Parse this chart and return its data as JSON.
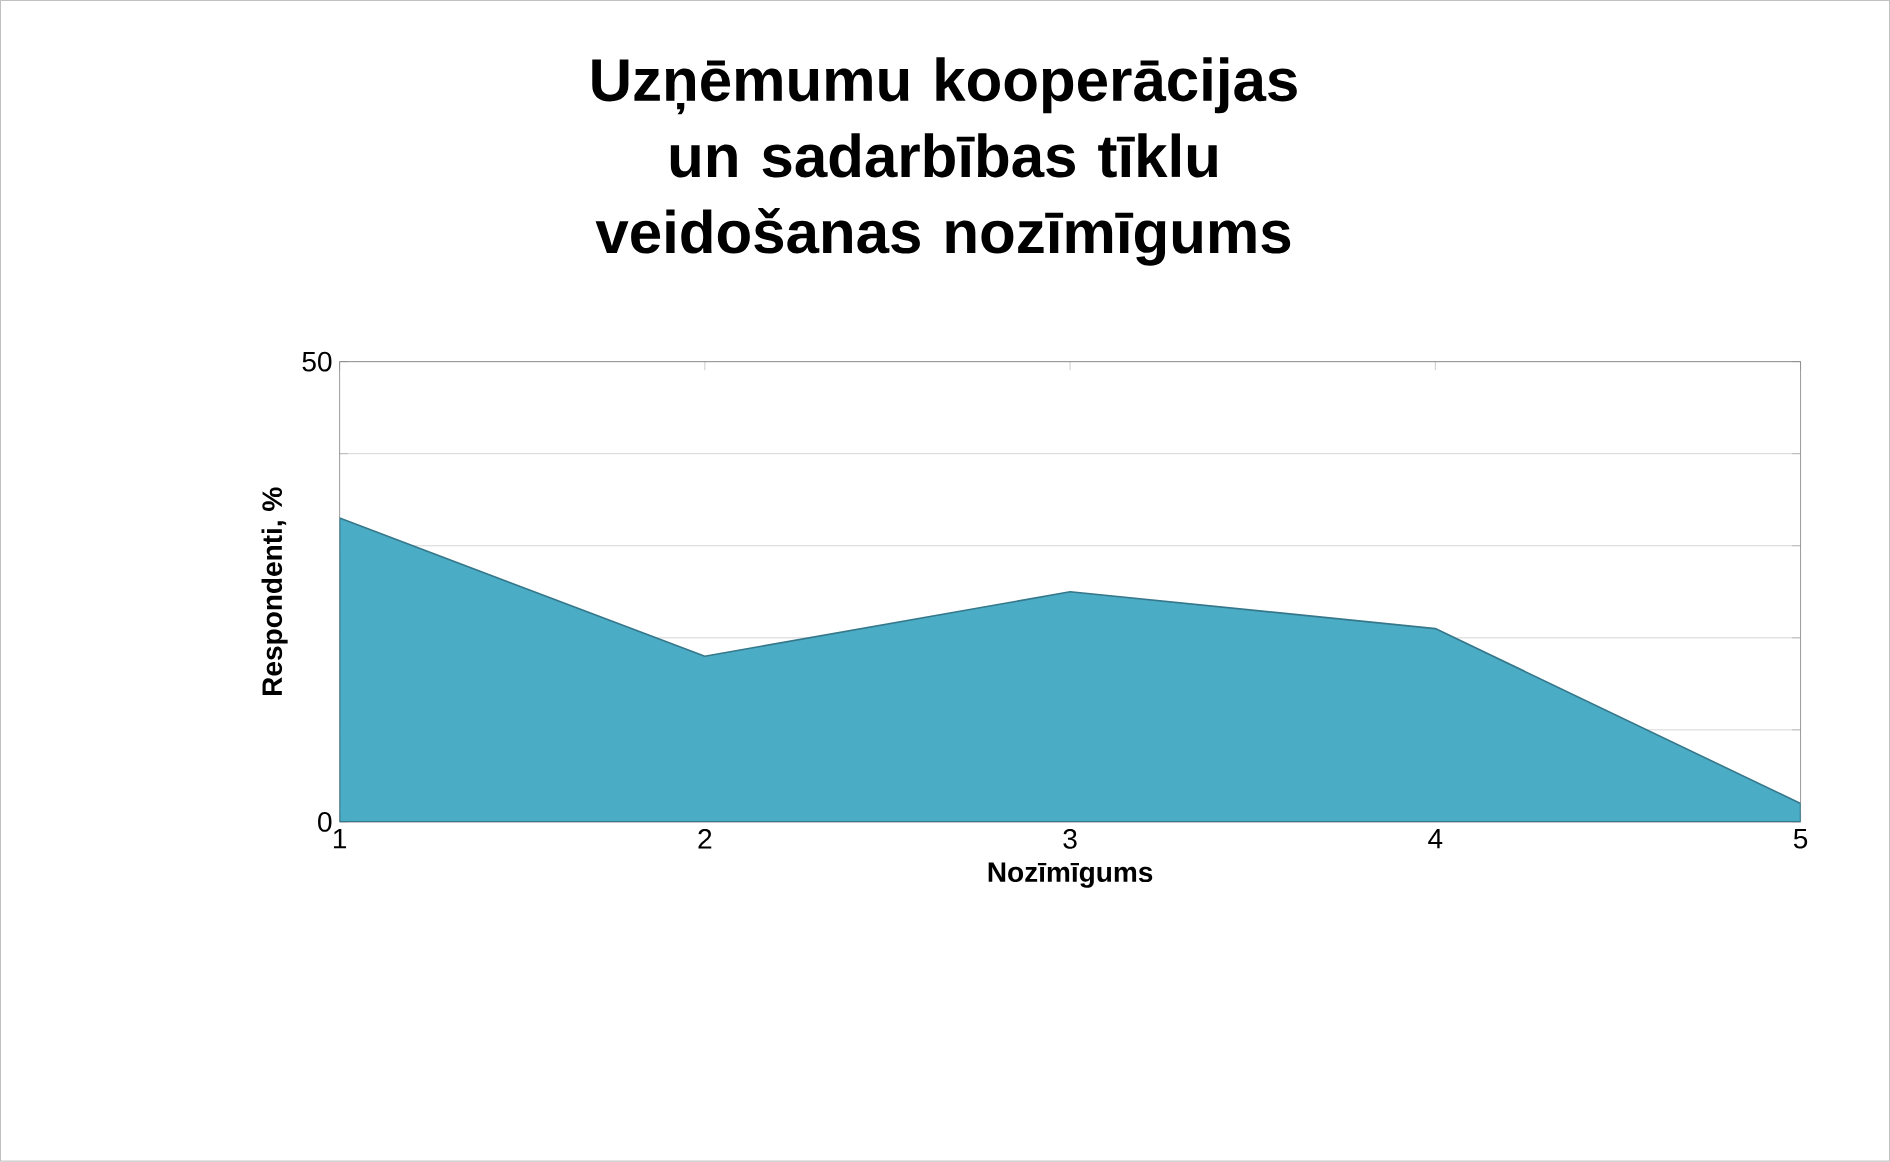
{
  "chart_data": {
    "type": "area",
    "title": "Uzņēmumu kooperācijas un sadarbības tīklu veidošanas nozīmīgums",
    "xlabel": "Nozīmīgums",
    "ylabel": "Respondenti, %",
    "categories": [
      "1",
      "2",
      "3",
      "4",
      "5"
    ],
    "values": [
      33,
      18,
      25,
      21,
      2
    ],
    "color": "#4bacc6",
    "ylim": [
      0,
      50
    ],
    "yticks": [
      0,
      {
        "value": 10,
        "label": null
      },
      {
        "value": 20,
        "label": null
      },
      {
        "value": 30,
        "label": null
      },
      {
        "value": 40,
        "label": null
      },
      50
    ],
    "grid": "y"
  }
}
